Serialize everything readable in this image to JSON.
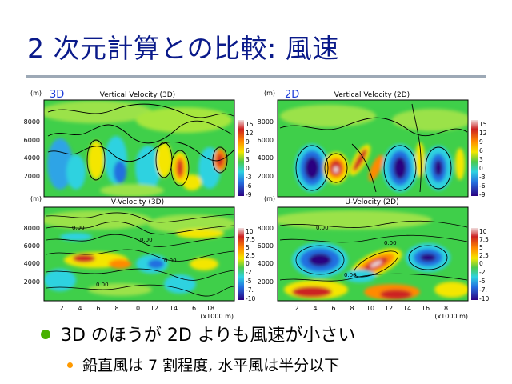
{
  "slide": {
    "title": "2 次元計算との比較: 風速",
    "bullet1": "3D のほうが 2D よりも風速が小さい",
    "bullet2": "鉛直風は 7 割程度, 水平風は半分以下",
    "bullet1_color": "#48b000",
    "bullet2_color": "#ff9a00"
  },
  "figure": {
    "y_unit": "(m)",
    "x_unit": "(x1000 m)",
    "y_ticks": [
      "8000",
      "6000",
      "4000",
      "2000"
    ],
    "x_ticks": [
      "2",
      "4",
      "6",
      "8",
      "10",
      "12",
      "14",
      "16",
      "18"
    ],
    "panels": [
      {
        "id": "vv3d",
        "tag": "3D",
        "title": "Vertical Velocity (3D)",
        "colorbar": [
          "15",
          "12",
          "9",
          "6",
          "3",
          "0",
          "-3",
          "-6",
          "-9"
        ]
      },
      {
        "id": "vv2d",
        "tag": "2D",
        "title": "Vertical Velocity (2D)",
        "colorbar": [
          "15",
          "12",
          "9",
          "6",
          "3",
          "0",
          "-3",
          "-6",
          "-9"
        ]
      },
      {
        "id": "v3d",
        "tag": "",
        "title": "V-Velocity (3D)",
        "colorbar": [
          "10",
          "7.5",
          "5",
          "2.5",
          "0",
          "-2.",
          "-5",
          "-7.",
          "-10"
        ]
      },
      {
        "id": "u2d",
        "tag": "",
        "title": "U-Velocity (2D)",
        "colorbar": [
          "10",
          "7.5",
          "5",
          "2.5",
          "0",
          "-2.",
          "-5",
          "-7.",
          "-10"
        ]
      }
    ],
    "contour_labels": [
      "0.00"
    ]
  }
}
